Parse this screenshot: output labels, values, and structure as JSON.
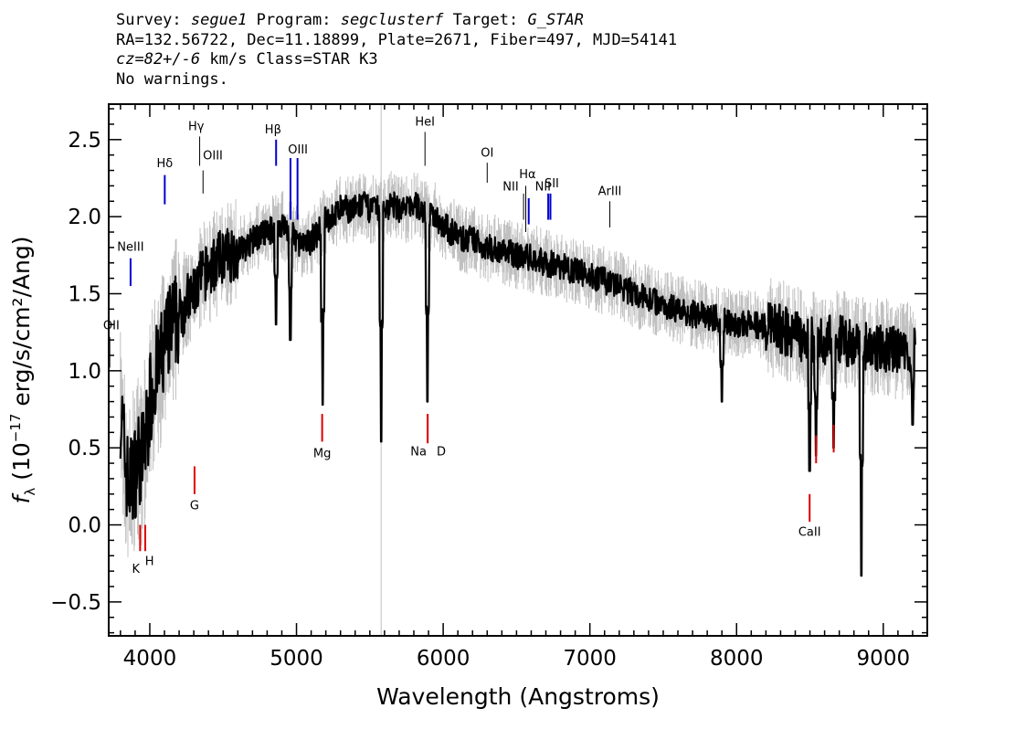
{
  "header": {
    "survey_label": "Survey:",
    "survey": "segue1",
    "program_label": "Program:",
    "program": "segclusterf",
    "target_label": "Target:",
    "target": "G_STAR",
    "line2": "RA=132.56722, Dec=11.18899, Plate=2671, Fiber=497, MJD=54141",
    "cz_value": "cz=82+/-6",
    "cz_rest": " km/s Class=STAR K3",
    "line4": "No warnings."
  },
  "chart_data": {
    "type": "line",
    "xlabel": "Wavelength (Angstroms)",
    "ylabel": "f_λ (10^-17 erg/s/cm²/Ang)",
    "ylabel_main": "erg/s/cm²/Ang)",
    "xlim": [
      3720,
      9300
    ],
    "ylim": [
      -0.72,
      2.73
    ],
    "x_ticks": [
      4000,
      5000,
      6000,
      7000,
      8000,
      9000
    ],
    "x_tick_labels": [
      "4000",
      "5000",
      "6000",
      "7000",
      "8000",
      "9000"
    ],
    "y_ticks": [
      -0.5,
      0.0,
      0.5,
      1.0,
      1.5,
      2.0,
      2.5
    ],
    "y_tick_labels": [
      "−0.5",
      "0.0",
      "0.5",
      "1.0",
      "1.5",
      "2.0",
      "2.5"
    ],
    "colors": {
      "error": "#c0c0c0",
      "flux": "#000000",
      "emission": "#0000cc",
      "absorption": "#dd0000",
      "other": "#000000"
    },
    "series": [
      {
        "role": "flux",
        "x": [
          3780,
          3800,
          3820,
          3840,
          3860,
          3880,
          3900,
          3920,
          3940,
          3960,
          3980,
          4000,
          4030,
          4060,
          4100,
          4150,
          4200,
          4250,
          4300,
          4350,
          4400,
          4450,
          4500,
          4550,
          4600,
          4650,
          4700,
          4750,
          4800,
          4850,
          4900,
          4950,
          5000,
          5050,
          5100,
          5150,
          5200,
          5250,
          5300,
          5350,
          5400,
          5450,
          5500,
          5550,
          5600,
          5650,
          5700,
          5750,
          5800,
          5850,
          5900,
          5950,
          6000,
          6050,
          6100,
          6150,
          6200,
          6300,
          6400,
          6500,
          6600,
          6700,
          6800,
          6900,
          7000,
          7100,
          7200,
          7300,
          7400,
          7500,
          7600,
          7700,
          7800,
          7900,
          8000,
          8100,
          8200,
          8300,
          8400,
          8500,
          8600,
          8700,
          8800,
          8900,
          9000,
          9100,
          9200
        ],
        "y": [
          0.95,
          0.75,
          0.55,
          0.35,
          0.25,
          0.3,
          0.35,
          0.45,
          0.4,
          0.5,
          0.6,
          0.8,
          0.95,
          1.0,
          1.15,
          1.3,
          1.35,
          1.45,
          1.5,
          1.6,
          1.65,
          1.7,
          1.75,
          1.75,
          1.78,
          1.8,
          1.85,
          1.88,
          1.9,
          1.92,
          1.95,
          1.9,
          1.85,
          1.8,
          1.85,
          1.9,
          1.98,
          2.0,
          2.05,
          2.05,
          2.05,
          2.08,
          2.05,
          2.05,
          2.05,
          2.08,
          2.05,
          2.05,
          2.08,
          2.05,
          2.0,
          2.0,
          1.95,
          1.9,
          1.88,
          1.85,
          1.85,
          1.8,
          1.78,
          1.75,
          1.73,
          1.7,
          1.68,
          1.65,
          1.62,
          1.58,
          1.55,
          1.5,
          1.47,
          1.43,
          1.4,
          1.37,
          1.35,
          1.33,
          1.3,
          1.3,
          1.28,
          1.27,
          1.23,
          1.2,
          1.2,
          1.2,
          1.18,
          1.15,
          1.15,
          1.13,
          1.12
        ]
      }
    ],
    "absorption_dips": [
      {
        "x": 5178,
        "y": 0.78
      },
      {
        "x": 5577,
        "y": 0.54
      },
      {
        "x": 5893,
        "y": 0.8
      },
      {
        "x": 4861,
        "y": 1.3
      },
      {
        "x": 4958,
        "y": 1.2
      },
      {
        "x": 8498,
        "y": 0.35
      },
      {
        "x": 8542,
        "y": 0.45
      },
      {
        "x": 8662,
        "y": 0.5
      },
      {
        "x": 8850,
        "y": -0.33
      },
      {
        "x": 7900,
        "y": 0.8
      },
      {
        "x": 9200,
        "y": 0.65
      }
    ],
    "sky_line_x": 5577,
    "spectral_lines": [
      {
        "label": "NeIII",
        "x": 3869,
        "y1": 1.55,
        "y2": 1.73,
        "type": "emission",
        "lx": 3869,
        "ly": 1.78
      },
      {
        "label": "OII",
        "x": 3727,
        "y1": 1.02,
        "y2": 1.22,
        "type": "other",
        "lx": 3738,
        "ly": 1.27
      },
      {
        "label": "Hδ",
        "x": 4102,
        "y1": 2.08,
        "y2": 2.27,
        "type": "emission",
        "lx": 4102,
        "ly": 2.32
      },
      {
        "label": "Hγ",
        "x": 4340,
        "y1": 2.33,
        "y2": 2.52,
        "type": "other",
        "lx": 4316,
        "ly": 2.56
      },
      {
        "label": "OIII",
        "x": 4363,
        "y1": 2.15,
        "y2": 2.3,
        "type": "other",
        "lx": 4430,
        "ly": 2.37
      },
      {
        "label": "Hβ",
        "x": 4861,
        "y1": 2.33,
        "y2": 2.5,
        "type": "emission",
        "lx": 4840,
        "ly": 2.54
      },
      {
        "label": "OIII",
        "x": 4959,
        "y1": 1.98,
        "y2": 2.38,
        "type": "emission",
        "lx": 5010,
        "ly": 2.41
      },
      {
        "label": "OIII",
        "x": 5007,
        "y1": 1.98,
        "y2": 2.38,
        "type": "emission",
        "lx": null,
        "ly": null
      },
      {
        "label": "HeI",
        "x": 5876,
        "y1": 2.33,
        "y2": 2.55,
        "type": "other",
        "lx": 5876,
        "ly": 2.59
      },
      {
        "label": "OI",
        "x": 6300,
        "y1": 2.22,
        "y2": 2.35,
        "type": "other",
        "lx": 6300,
        "ly": 2.39
      },
      {
        "label": "NII",
        "x": 6548,
        "y1": 1.98,
        "y2": 2.15,
        "type": "other",
        "lx": 6460,
        "ly": 2.17
      },
      {
        "label": "Hα",
        "x": 6563,
        "y1": 1.9,
        "y2": 2.2,
        "type": "other",
        "lx": 6575,
        "ly": 2.25
      },
      {
        "label": "NII",
        "x": 6583,
        "y1": 1.95,
        "y2": 2.12,
        "type": "emission",
        "lx": 6680,
        "ly": 2.17
      },
      {
        "label": "SII",
        "x": 6716,
        "y1": 1.98,
        "y2": 2.15,
        "type": "emission",
        "lx": 6740,
        "ly": 2.19
      },
      {
        "label": "SII",
        "x": 6731,
        "y1": 1.98,
        "y2": 2.15,
        "type": "emission",
        "lx": null,
        "ly": null
      },
      {
        "label": "ArIII",
        "x": 7136,
        "y1": 1.93,
        "y2": 2.1,
        "type": "other",
        "lx": 7136,
        "ly": 2.14
      },
      {
        "label": "K",
        "x": 3934,
        "y1": -0.17,
        "y2": 0.0,
        "type": "absorption",
        "lx": 3905,
        "ly": -0.31
      },
      {
        "label": "H",
        "x": 3969,
        "y1": -0.17,
        "y2": 0.0,
        "type": "absorption",
        "lx": 3998,
        "ly": -0.26
      },
      {
        "label": "G",
        "x": 4305,
        "y1": 0.2,
        "y2": 0.38,
        "type": "absorption",
        "lx": 4305,
        "ly": 0.1
      },
      {
        "label": "Mg",
        "x": 5175,
        "y1": 0.54,
        "y2": 0.72,
        "type": "absorption",
        "lx": 5175,
        "ly": 0.44
      },
      {
        "label": "Na",
        "x": 5894,
        "y1": 0.53,
        "y2": 0.72,
        "type": "absorption",
        "lx": 5832,
        "ly": 0.45
      },
      {
        "label": "D",
        "x": 5894,
        "y1": 0.53,
        "y2": 0.72,
        "type": "absorption",
        "lx": 5987,
        "ly": 0.45
      },
      {
        "label": "CaII",
        "x": 8498,
        "y1": 0.02,
        "y2": 0.2,
        "type": "absorption",
        "lx": 8498,
        "ly": -0.07
      },
      {
        "label": "CaII",
        "x": 8542,
        "y1": 0.4,
        "y2": 0.58,
        "type": "absorption",
        "lx": null,
        "ly": null
      },
      {
        "label": "CaII",
        "x": 8662,
        "y1": 0.47,
        "y2": 0.65,
        "type": "absorption",
        "lx": null,
        "ly": null
      }
    ]
  }
}
